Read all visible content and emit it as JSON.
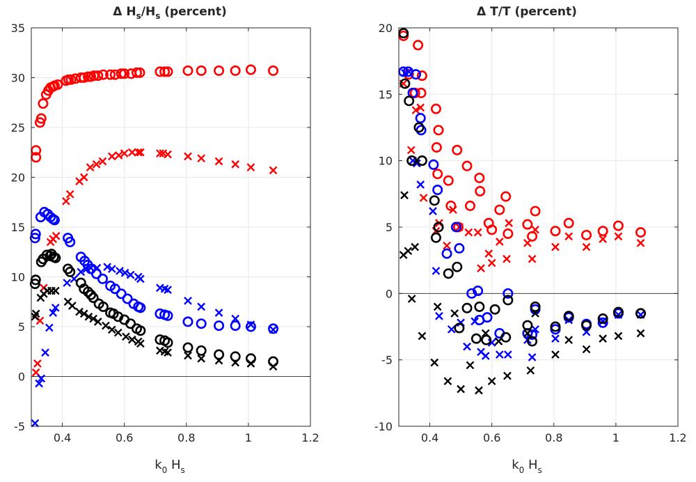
{
  "chart_data": [
    {
      "type": "scatter",
      "title": {
        "delta": "Δ",
        "main": "H",
        "sub1": "s",
        "slash": "/H",
        "sub2": "s",
        "tail": " (percent)"
      },
      "xlabel": {
        "main": "k",
        "sub": "0",
        "var": " H",
        "var_sub": "s"
      },
      "xlim": [
        0.3,
        1.2
      ],
      "ylim": [
        -5,
        35
      ],
      "xticks": [
        0.4,
        0.6,
        0.8,
        1,
        1.2
      ],
      "xtick_labels": [
        "0.4",
        "0.6",
        "0.8",
        "1",
        "1.2"
      ],
      "yticks": [
        -5,
        0,
        5,
        10,
        15,
        20,
        25,
        30,
        35
      ],
      "ytick_labels": [
        "-5",
        "0",
        "5",
        "10",
        "15",
        "20",
        "25",
        "30",
        "35"
      ],
      "grid": true,
      "zero_line": true,
      "series": [
        {
          "color": "#ff0000",
          "marker": "o",
          "x": [
            0.315,
            0.315,
            0.328,
            0.332,
            0.338,
            0.348,
            0.355,
            0.362,
            0.37,
            0.375,
            0.385,
            0.412,
            0.42,
            0.428,
            0.442,
            0.46,
            0.47,
            0.483,
            0.492,
            0.502,
            0.515,
            0.532,
            0.555,
            0.57,
            0.59,
            0.6,
            0.622,
            0.64,
            0.65,
            0.715,
            0.73,
            0.74,
            0.805,
            0.848,
            0.905,
            0.958,
            1.008,
            1.08
          ],
          "y": [
            22.0,
            22.7,
            25.5,
            25.9,
            27.4,
            28.3,
            28.7,
            29.0,
            29.1,
            29.2,
            29.3,
            29.7,
            29.8,
            29.8,
            29.9,
            30.0,
            30.0,
            30.1,
            30.1,
            30.2,
            30.2,
            30.3,
            30.3,
            30.3,
            30.4,
            30.4,
            30.4,
            30.5,
            30.5,
            30.6,
            30.6,
            30.6,
            30.7,
            30.7,
            30.7,
            30.7,
            30.8,
            30.7
          ]
        },
        {
          "color": "#ff0000",
          "marker": "x",
          "x": [
            0.315,
            0.32,
            0.328,
            0.34,
            0.362,
            0.37,
            0.38,
            0.412,
            0.425,
            0.455,
            0.47,
            0.49,
            0.51,
            0.53,
            0.56,
            0.582,
            0.6,
            0.625,
            0.645,
            0.652,
            0.715,
            0.725,
            0.74,
            0.805,
            0.848,
            0.905,
            0.958,
            1.008,
            1.08
          ],
          "y": [
            0.4,
            1.3,
            5.6,
            8.9,
            13.5,
            13.8,
            14.1,
            17.6,
            18.3,
            19.6,
            20.0,
            21.0,
            21.3,
            21.6,
            22.1,
            22.2,
            22.4,
            22.5,
            22.5,
            22.5,
            22.4,
            22.4,
            22.3,
            22.1,
            21.9,
            21.6,
            21.3,
            21.0,
            20.7
          ]
        },
        {
          "color": "#0000ff",
          "marker": "o",
          "x": [
            0.312,
            0.314,
            0.33,
            0.342,
            0.353,
            0.362,
            0.37,
            0.375,
            0.418,
            0.425,
            0.46,
            0.472,
            0.482,
            0.492,
            0.51,
            0.53,
            0.555,
            0.57,
            0.59,
            0.61,
            0.63,
            0.645,
            0.652,
            0.715,
            0.73,
            0.74,
            0.805,
            0.848,
            0.905,
            0.958,
            1.008,
            1.08
          ],
          "y": [
            13.9,
            14.3,
            16.0,
            16.5,
            16.3,
            16.0,
            15.8,
            15.7,
            13.9,
            13.5,
            12.0,
            11.6,
            11.2,
            10.8,
            10.3,
            9.8,
            9.1,
            8.8,
            8.3,
            7.8,
            7.3,
            7.0,
            6.9,
            6.3,
            6.2,
            6.1,
            5.5,
            5.3,
            5.1,
            5.1,
            5.0,
            4.8
          ]
        },
        {
          "color": "#0000ff",
          "marker": "x",
          "x": [
            0.312,
            0.325,
            0.332,
            0.345,
            0.358,
            0.37,
            0.378,
            0.415,
            0.438,
            0.46,
            0.478,
            0.492,
            0.512,
            0.545,
            0.56,
            0.585,
            0.602,
            0.62,
            0.645,
            0.652,
            0.715,
            0.73,
            0.74,
            0.805,
            0.848,
            0.905,
            0.958,
            1.008,
            1.08
          ],
          "y": [
            -4.7,
            -0.7,
            -0.2,
            2.4,
            4.9,
            6.4,
            6.9,
            9.4,
            9.8,
            10.5,
            10.8,
            10.9,
            10.9,
            11.0,
            10.8,
            10.6,
            10.4,
            10.2,
            10.0,
            9.8,
            8.9,
            8.8,
            8.7,
            7.6,
            7.0,
            6.4,
            5.8,
            5.2,
            4.7
          ]
        },
        {
          "color": "#000000",
          "marker": "o",
          "x": [
            0.312,
            0.314,
            0.332,
            0.338,
            0.35,
            0.36,
            0.365,
            0.372,
            0.378,
            0.418,
            0.425,
            0.46,
            0.47,
            0.483,
            0.492,
            0.5,
            0.518,
            0.532,
            0.555,
            0.565,
            0.58,
            0.6,
            0.62,
            0.64,
            0.652,
            0.715,
            0.73,
            0.74,
            0.805,
            0.848,
            0.905,
            0.958,
            1.008,
            1.08
          ],
          "y": [
            9.3,
            9.7,
            11.5,
            11.8,
            12.2,
            12.1,
            12.3,
            12.0,
            11.9,
            10.8,
            10.5,
            9.4,
            8.8,
            8.5,
            8.2,
            7.9,
            7.3,
            7.0,
            6.4,
            6.3,
            6.0,
            5.7,
            5.3,
            4.8,
            4.6,
            3.7,
            3.6,
            3.4,
            2.9,
            2.6,
            2.2,
            2.0,
            1.8,
            1.5
          ]
        },
        {
          "color": "#000000",
          "marker": "x",
          "x": [
            0.312,
            0.315,
            0.33,
            0.34,
            0.352,
            0.365,
            0.378,
            0.418,
            0.432,
            0.455,
            0.47,
            0.485,
            0.5,
            0.515,
            0.54,
            0.56,
            0.58,
            0.605,
            0.625,
            0.645,
            0.652,
            0.715,
            0.73,
            0.74,
            0.805,
            0.848,
            0.905,
            0.958,
            1.008,
            1.08
          ],
          "y": [
            6.0,
            6.3,
            7.9,
            8.3,
            8.6,
            8.6,
            8.6,
            7.5,
            7.1,
            6.5,
            6.3,
            6.0,
            5.8,
            5.5,
            5.1,
            4.7,
            4.4,
            4.0,
            3.7,
            3.5,
            3.3,
            2.6,
            2.5,
            2.4,
            2.1,
            1.8,
            1.6,
            1.4,
            1.3,
            1.0
          ]
        }
      ]
    },
    {
      "type": "scatter",
      "title": {
        "delta": "Δ",
        "main": "T/T",
        "tail": " (percent)"
      },
      "xlabel": {
        "main": "k",
        "sub": "0",
        "var": " H",
        "var_sub": "s"
      },
      "xlim": [
        0.3,
        1.2
      ],
      "ylim": [
        -10,
        20
      ],
      "xticks": [
        0.4,
        0.6,
        0.8,
        1,
        1.2
      ],
      "xtick_labels": [
        "0.4",
        "0.6",
        "0.8",
        "1",
        "1.2"
      ],
      "yticks": [
        -10,
        -5,
        0,
        5,
        10,
        15,
        20
      ],
      "ytick_labels": [
        "-10",
        "-5",
        "0",
        "5",
        "10",
        "15",
        "20"
      ],
      "grid": true,
      "zero_line": true,
      "series": [
        {
          "color": "#ff0000",
          "marker": "o",
          "x": [
            0.315,
            0.332,
            0.352,
            0.362,
            0.372,
            0.375,
            0.42,
            0.422,
            0.425,
            0.428,
            0.46,
            0.468,
            0.488,
            0.492,
            0.52,
            0.53,
            0.56,
            0.562,
            0.59,
            0.6,
            0.625,
            0.645,
            0.652,
            0.715,
            0.73,
            0.74,
            0.805,
            0.848,
            0.905,
            0.958,
            1.008,
            1.08
          ],
          "y": [
            19.4,
            16.5,
            15.1,
            18.7,
            15.1,
            16.4,
            13.9,
            11.0,
            9.0,
            12.3,
            8.5,
            6.6,
            10.8,
            5.0,
            9.6,
            6.6,
            8.7,
            7.7,
            5.3,
            4.8,
            6.3,
            7.3,
            4.5,
            5.2,
            4.3,
            6.2,
            4.7,
            5.3,
            4.4,
            4.7,
            5.1,
            4.6
          ]
        },
        {
          "color": "#ff0000",
          "marker": "x",
          "x": [
            0.315,
            0.34,
            0.355,
            0.37,
            0.38,
            0.42,
            0.43,
            0.455,
            0.475,
            0.495,
            0.525,
            0.555,
            0.565,
            0.59,
            0.6,
            0.625,
            0.648,
            0.655,
            0.715,
            0.73,
            0.74,
            0.805,
            0.848,
            0.905,
            0.958,
            1.008,
            1.08
          ],
          "y": [
            15.8,
            10.8,
            13.8,
            14.0,
            7.2,
            4.7,
            5.3,
            3.6,
            6.3,
            5.0,
            4.6,
            4.6,
            1.9,
            3.0,
            2.3,
            3.9,
            2.6,
            5.3,
            3.8,
            2.6,
            4.8,
            3.5,
            4.3,
            3.5,
            4.1,
            4.3,
            3.8
          ]
        },
        {
          "color": "#0000ff",
          "marker": "o",
          "x": [
            0.315,
            0.33,
            0.345,
            0.355,
            0.37,
            0.372,
            0.412,
            0.425,
            0.455,
            0.485,
            0.495,
            0.535,
            0.555,
            0.56,
            0.585,
            0.625,
            0.652,
            0.715,
            0.73,
            0.74,
            0.805,
            0.848,
            0.905,
            0.958,
            1.008,
            1.08
          ],
          "y": [
            16.7,
            16.7,
            15.1,
            16.5,
            13.2,
            12.3,
            9.7,
            7.8,
            3.0,
            5.0,
            3.4,
            0.0,
            0.2,
            -2.0,
            -1.8,
            -3.0,
            0.0,
            -3.0,
            -3.1,
            -1.2,
            -2.7,
            -1.8,
            -2.3,
            -2.2,
            -1.5,
            -1.5
          ]
        },
        {
          "color": "#0000ff",
          "marker": "x",
          "x": [
            0.32,
            0.332,
            0.345,
            0.358,
            0.37,
            0.41,
            0.42,
            0.43,
            0.47,
            0.5,
            0.52,
            0.545,
            0.565,
            0.58,
            0.6,
            0.625,
            0.652,
            0.715,
            0.73,
            0.74,
            0.805,
            0.848,
            0.905,
            0.958,
            1.008,
            1.08
          ],
          "y": [
            16.6,
            16.7,
            10.0,
            9.8,
            8.2,
            6.2,
            1.7,
            -1.7,
            -2.7,
            -2.2,
            -4.0,
            -2.1,
            -4.4,
            -4.7,
            -3.7,
            -4.6,
            -4.6,
            -3.5,
            -4.8,
            -2.7,
            -3.4,
            -2.0,
            -2.9,
            -2.1,
            -1.6,
            -1.6
          ]
        },
        {
          "color": "#000000",
          "marker": "o",
          "x": [
            0.315,
            0.32,
            0.333,
            0.342,
            0.365,
            0.375,
            0.415,
            0.42,
            0.428,
            0.46,
            0.488,
            0.495,
            0.52,
            0.55,
            0.56,
            0.582,
            0.61,
            0.645,
            0.652,
            0.715,
            0.73,
            0.74,
            0.805,
            0.848,
            0.905,
            0.958,
            1.008,
            1.08
          ],
          "y": [
            19.6,
            15.8,
            14.5,
            10.0,
            12.5,
            10.0,
            7.0,
            4.2,
            5.0,
            1.5,
            2.0,
            -2.6,
            -1.1,
            -3.4,
            -1.0,
            -3.5,
            -1.2,
            -3.3,
            -0.5,
            -2.4,
            -3.6,
            -1.0,
            -2.5,
            -1.7,
            -2.4,
            -1.9,
            -1.4,
            -1.5
          ]
        },
        {
          "color": "#000000",
          "marker": "x",
          "x": [
            0.315,
            0.318,
            0.33,
            0.342,
            0.352,
            0.375,
            0.415,
            0.425,
            0.458,
            0.48,
            0.5,
            0.53,
            0.558,
            0.58,
            0.6,
            0.622,
            0.65,
            0.715,
            0.725,
            0.74,
            0.805,
            0.848,
            0.905,
            0.958,
            1.008,
            1.08
          ],
          "y": [
            2.9,
            7.4,
            3.2,
            -0.4,
            3.5,
            -3.2,
            -5.2,
            -1.0,
            -6.6,
            -1.5,
            -7.2,
            -5.4,
            -7.3,
            -3.0,
            -6.6,
            -3.6,
            -6.2,
            -3.0,
            -5.8,
            -1.5,
            -4.6,
            -3.5,
            -4.2,
            -3.4,
            -3.2,
            -3.0
          ]
        }
      ]
    }
  ]
}
